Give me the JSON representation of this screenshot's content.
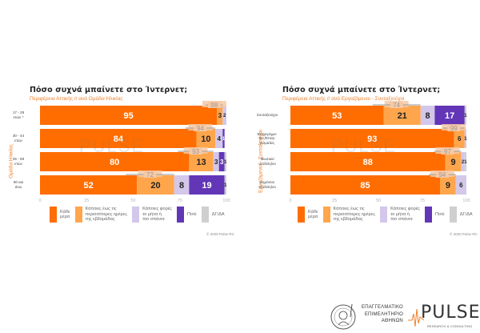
{
  "colors": {
    "every_day": "#ff6d00",
    "some_days_week": "#ffa64d",
    "sometimes_month": "#d3c7ea",
    "never": "#6236b7",
    "dk_na": "#cfcfcf",
    "accent": "#f07f2a"
  },
  "chart_data": [
    {
      "type": "bar",
      "orientation": "horizontal-stacked",
      "title": "Πόσο συχνά μπαίνετε στο Ίντερνετ;",
      "subtitle": "Περιφέρεια Αττικής // ανά Ομάδα Ηλικίας",
      "ylabel": "Ομάδα Ηλικίας",
      "xlabel": "",
      "xlim": [
        0,
        100
      ],
      "xticks": [
        "0",
        "25",
        "50",
        "75",
        "100"
      ],
      "categories": [
        "17 - 29\nετών *",
        "30 - 44\nετών",
        "45 - 59\nετών",
        "60 και\nάνω"
      ],
      "series": [
        {
          "name": "Κάθε μέρα",
          "values": [
            95,
            84,
            80,
            52
          ]
        },
        {
          "name": "Κάποιες έως τις περισσότερες ημέρες της εβδομάδας",
          "values": [
            3,
            10,
            13,
            20
          ]
        },
        {
          "name": "Κάποιες φορές το μήνα ή πιο σπάνια",
          "values": [
            2,
            4,
            3,
            8
          ]
        },
        {
          "name": "Ποτέ",
          "values": [
            0,
            1,
            3,
            19
          ]
        },
        {
          "name": "ΔΓ/ΔΑ",
          "values": [
            0,
            0,
            1,
            1
          ]
        }
      ],
      "totals": [
        98,
        94,
        93,
        72
      ],
      "legend": "bottom",
      "copyright": "© 2020 Pulse RC"
    },
    {
      "type": "bar",
      "orientation": "horizontal-stacked",
      "title": "Πόσο συχνά μπαίνετε στο Ίντερνετ;",
      "subtitle": "Περιφέρεια Αττικής // ανά Εργαζόμενοι - Συνταξιούχοι",
      "ylabel": "Εργαζόμενοι - Συνταξιούχοι",
      "xlabel": "",
      "xlim": [
        0,
        100
      ],
      "xticks": [
        "0",
        "25",
        "50",
        "75",
        "100"
      ],
      "categories": [
        "Συνταξιούχοι",
        "Επιχειρημα-\nτίες/Επαγ-\nγελματίες",
        "Ιδιωτικοί\nυπάλληλοι",
        "Δημόσιοι\nυπάλληλοι"
      ],
      "series": [
        {
          "name": "Κάθε μέρα",
          "values": [
            53,
            93,
            88,
            85
          ]
        },
        {
          "name": "Κάποιες έως τις περισσότερες ημέρες της εβδομάδας",
          "values": [
            21,
            6,
            9,
            9
          ]
        },
        {
          "name": "Κάποιες φορές το μήνα ή πιο σπάνια",
          "values": [
            8,
            1,
            2,
            6
          ]
        },
        {
          "name": "Ποτέ",
          "values": [
            17,
            0,
            0,
            0
          ]
        },
        {
          "name": "ΔΓ/ΔΑ",
          "values": [
            1,
            0,
            1,
            0
          ]
        }
      ],
      "totals": [
        74,
        99,
        97,
        94
      ],
      "legend": "bottom",
      "copyright": "© 2020 Pulse RC"
    }
  ],
  "legend": [
    {
      "label": "Κάθε\nμέρα",
      "key": "every_day"
    },
    {
      "label": "Κάποιες έως τις\nπερισσότερες ημέρες\nτης εβδομάδας",
      "key": "some_days_week"
    },
    {
      "label": "Κάποιες φορές\nτο μήνα ή\nπιο σπάνια",
      "key": "sometimes_month"
    },
    {
      "label": "Ποτέ",
      "key": "never"
    },
    {
      "label": "ΔΓ/ΔΑ",
      "key": "dk_na"
    }
  ],
  "watermark": "PULSE",
  "footer": {
    "chamber_name": "ΕΠΑΓΓΕΛΜΑΤΙΚΟ\nΕΠΙΜΕΛΗΤΗΡΙΟ\nΑΘΗΝΩΝ",
    "pulse_logo": "PULSE",
    "pulse_tagline": "RESEARCH & CONSULTING"
  }
}
